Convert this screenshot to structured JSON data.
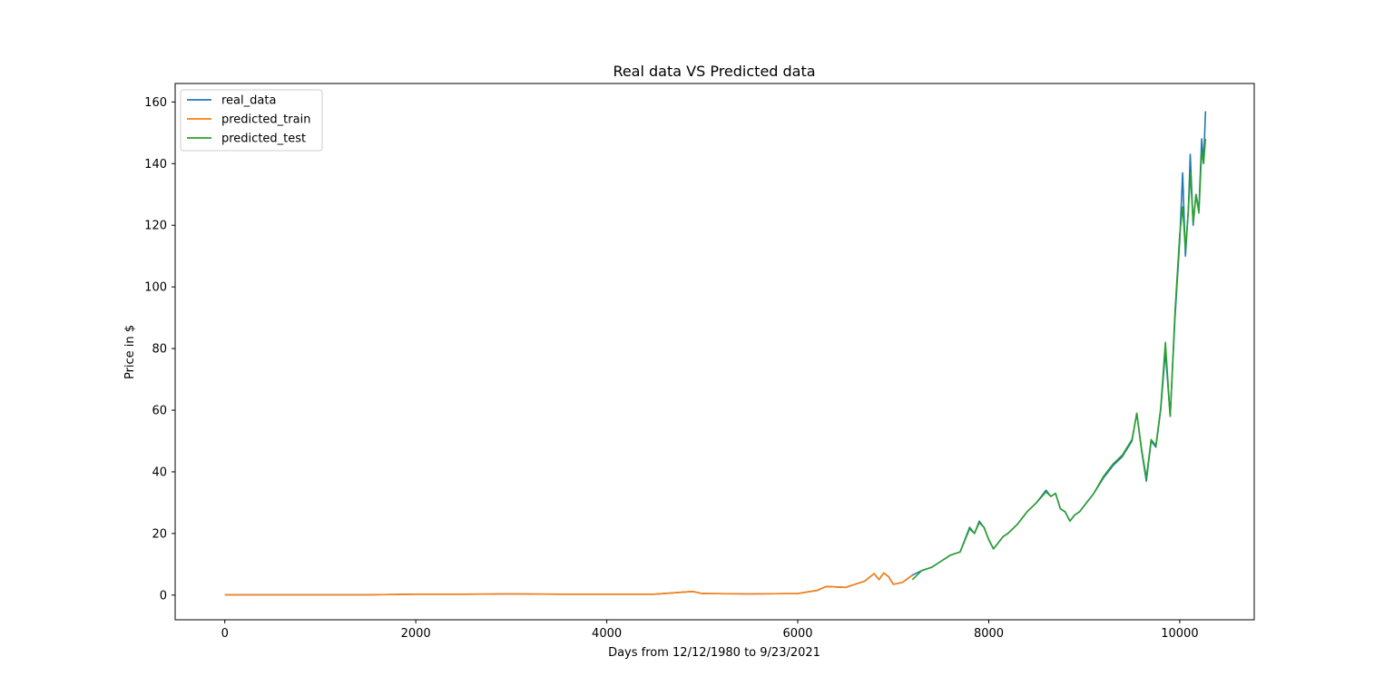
{
  "chart_data": {
    "type": "line",
    "title": "Real data VS Predicted data",
    "xlabel": "Days from 12/12/1980 to 9/23/2021",
    "ylabel": "Price in $",
    "xlim": [
      -520,
      10780
    ],
    "ylim": [
      -8,
      166
    ],
    "xticks": [
      0,
      2000,
      4000,
      6000,
      8000,
      10000
    ],
    "yticks": [
      0,
      20,
      40,
      60,
      80,
      100,
      120,
      140,
      160
    ],
    "grid": false,
    "legend_position": "upper-left",
    "series": [
      {
        "name": "real_data",
        "color": "#1f77b4",
        "x": [
          0,
          500,
          1000,
          1500,
          2000,
          2500,
          3000,
          3500,
          4000,
          4500,
          4900,
          5000,
          5500,
          6000,
          6200,
          6300,
          6500,
          6700,
          6800,
          6850,
          6900,
          6950,
          7000,
          7050,
          7100,
          7200,
          7300,
          7400,
          7500,
          7600,
          7700,
          7800,
          7850,
          7900,
          7950,
          8000,
          8050,
          8100,
          8150,
          8200,
          8300,
          8400,
          8500,
          8600,
          8650,
          8700,
          8750,
          8800,
          8850,
          8900,
          8950,
          9000,
          9100,
          9200,
          9300,
          9400,
          9500,
          9550,
          9600,
          9650,
          9700,
          9750,
          9800,
          9850,
          9900,
          9950,
          10000,
          10030,
          10060,
          10090,
          10110,
          10140,
          10170,
          10200,
          10230,
          10250,
          10270
        ],
        "y": [
          0.1,
          0.1,
          0.1,
          0.1,
          0.3,
          0.3,
          0.4,
          0.3,
          0.3,
          0.3,
          1.2,
          0.5,
          0.4,
          0.5,
          1.5,
          2.8,
          2.5,
          4.5,
          7.0,
          5.0,
          7.2,
          6.0,
          3.5,
          3.8,
          4.2,
          6.5,
          8.0,
          9.0,
          11.0,
          13.0,
          14.0,
          22.0,
          20.0,
          24.0,
          22.0,
          18.0,
          15.0,
          17.0,
          19.0,
          20.0,
          23.0,
          27.0,
          30.0,
          34.0,
          32.0,
          33.0,
          28.0,
          27.0,
          24.0,
          26.0,
          27.0,
          29.0,
          33.0,
          38.0,
          42.0,
          45.0,
          50.0,
          59.0,
          47.0,
          37.0,
          50.0,
          48.0,
          60.0,
          79.0,
          58.0,
          90.0,
          115.0,
          137.0,
          110.0,
          125.0,
          143.0,
          120.0,
          130.0,
          125.0,
          148.0,
          140.0,
          157.0
        ]
      },
      {
        "name": "predicted_train",
        "color": "#ff7f0e",
        "x": [
          0,
          500,
          1000,
          1500,
          2000,
          2500,
          3000,
          3500,
          4000,
          4500,
          4900,
          5000,
          5500,
          6000,
          6200,
          6300,
          6500,
          6700,
          6800,
          6850,
          6900,
          6950,
          7000,
          7050,
          7100,
          7200
        ],
        "y": [
          0.1,
          0.1,
          0.1,
          0.1,
          0.3,
          0.3,
          0.4,
          0.3,
          0.3,
          0.3,
          1.2,
          0.5,
          0.4,
          0.5,
          1.5,
          2.8,
          2.5,
          4.5,
          7.0,
          5.0,
          7.2,
          6.0,
          3.5,
          3.8,
          4.2,
          6.5
        ]
      },
      {
        "name": "predicted_test",
        "color": "#2ca02c",
        "x": [
          7200,
          7300,
          7400,
          7500,
          7600,
          7700,
          7800,
          7850,
          7900,
          7950,
          8000,
          8050,
          8100,
          8150,
          8200,
          8300,
          8400,
          8500,
          8600,
          8650,
          8700,
          8750,
          8800,
          8850,
          8900,
          8950,
          9000,
          9100,
          9200,
          9300,
          9400,
          9500,
          9550,
          9600,
          9650,
          9700,
          9750,
          9800,
          9850,
          9900,
          9950,
          10000,
          10030,
          10060,
          10090,
          10110,
          10140,
          10170,
          10200,
          10230,
          10250,
          10270
        ],
        "y": [
          5.0,
          8.0,
          9.0,
          11.0,
          13.0,
          14.0,
          21.5,
          20.0,
          23.5,
          22.0,
          18.0,
          15.0,
          17.0,
          19.0,
          20.0,
          23.0,
          27.0,
          30.0,
          33.5,
          32.0,
          33.0,
          28.0,
          27.0,
          24.0,
          26.0,
          27.0,
          29.0,
          33.0,
          38.5,
          42.5,
          45.5,
          50.5,
          59.0,
          47.5,
          38.0,
          50.5,
          48.5,
          60.5,
          82.0,
          58.0,
          92.0,
          117.0,
          126.0,
          112.0,
          125.0,
          137.0,
          121.0,
          130.0,
          124.0,
          144.0,
          140.0,
          148.0
        ]
      }
    ]
  }
}
